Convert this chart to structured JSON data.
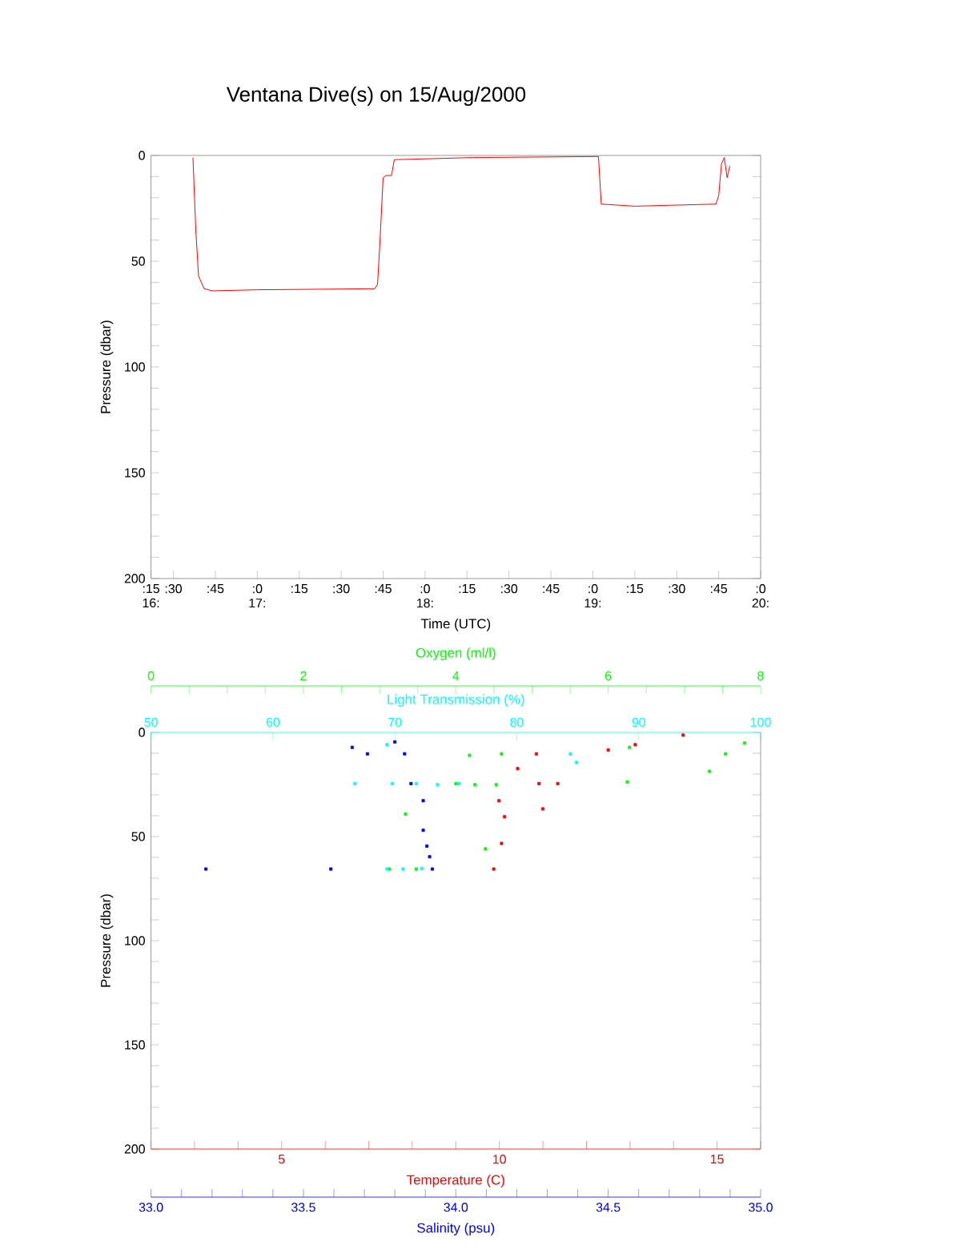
{
  "chart_data": [
    {
      "type": "line",
      "title": "Ventana Dive(s) on 15/Aug/2000",
      "xlabel": "Time (UTC)",
      "ylabel": "Pressure (dbar)",
      "xlim": [
        "2000-08-15T16:22",
        "2000-08-15T20:00"
      ],
      "ylim": [
        200,
        0
      ],
      "xticks": [
        {
          "value": "2000-08-15T16:22",
          "label": ":15 16:"
        },
        {
          "value": "2000-08-15T16:30",
          "label": ":30"
        },
        {
          "value": "2000-08-15T16:45",
          "label": ":45"
        },
        {
          "value": "2000-08-15T17:00",
          "label": ":0 17:"
        },
        {
          "value": "2000-08-15T17:15",
          "label": ":15"
        },
        {
          "value": "2000-08-15T17:30",
          "label": ":30"
        },
        {
          "value": "2000-08-15T17:45",
          "label": ":45"
        },
        {
          "value": "2000-08-15T18:00",
          "label": ":0 18:"
        },
        {
          "value": "2000-08-15T18:15",
          "label": ":15"
        },
        {
          "value": "2000-08-15T18:30",
          "label": ":30"
        },
        {
          "value": "2000-08-15T18:45",
          "label": ":45"
        },
        {
          "value": "2000-08-15T19:00",
          "label": ":0 19:"
        },
        {
          "value": "2000-08-15T19:15",
          "label": ":15"
        },
        {
          "value": "2000-08-15T19:30",
          "label": ":30"
        },
        {
          "value": "2000-08-15T19:45",
          "label": ":45"
        },
        {
          "value": "2000-08-15T20:00",
          "label": ":0 20:"
        }
      ],
      "yticks": [
        0,
        {
          "value": 10,
          "label": null
        },
        {
          "value": 20,
          "label": null
        },
        {
          "value": 30,
          "label": null
        },
        {
          "value": 40,
          "label": null
        },
        50,
        {
          "value": 60,
          "label": null
        },
        {
          "value": 70,
          "label": null
        },
        {
          "value": 80,
          "label": null
        },
        {
          "value": 90,
          "label": null
        },
        100,
        {
          "value": 110,
          "label": null
        },
        {
          "value": 120,
          "label": null
        },
        {
          "value": 130,
          "label": null
        },
        {
          "value": 140,
          "label": null
        },
        150,
        {
          "value": 160,
          "label": null
        },
        {
          "value": 170,
          "label": null
        },
        {
          "value": 180,
          "label": null
        },
        {
          "value": 190,
          "label": null
        },
        200
      ],
      "series": [
        {
          "color": "#ff0000",
          "x": [
            "2000-08-15T16:37",
            "2000-08-15T16:38",
            "2000-08-15T16:39",
            "2000-08-15T16:41",
            "2000-08-15T16:44",
            "2000-08-15T17:00",
            "2000-08-15T17:42",
            "2000-08-15T17:43",
            "2000-08-15T17:44",
            "2000-08-15T17:45",
            "2000-08-15T17:46",
            "2000-08-15T17:48",
            "2000-08-15T17:49",
            "2000-08-15T18:17",
            "2000-08-15T19:02",
            "2000-08-15T19:03",
            "2000-08-15T19:15",
            "2000-08-15T19:44",
            "2000-08-15T19:45",
            "2000-08-15T19:46",
            "2000-08-15T19:47",
            "2000-08-15T19:48",
            "2000-08-15T19:49"
          ],
          "values": [
            1,
            35,
            57,
            63,
            64,
            63.5,
            63,
            61,
            37.5,
            10.5,
            9.5,
            9.5,
            2,
            1,
            0.5,
            23,
            24,
            23,
            19,
            4,
            1,
            10.5,
            5
          ]
        }
      ]
    },
    {
      "type": "scatter",
      "xlabel": "Temperature (C)",
      "x2label": "Oxygen (ml/l)",
      "ylabel": "Pressure (dbar)",
      "marker": "square",
      "xlim": [
        2,
        16
      ],
      "xticks": [
        {
          "value": 2,
          "label": null
        },
        {
          "value": 3,
          "label": null
        },
        {
          "value": 4,
          "label": null
        },
        5,
        {
          "value": 6,
          "label": null
        },
        {
          "value": 7,
          "label": null
        },
        {
          "value": 8,
          "label": null
        },
        {
          "value": 9,
          "label": null
        },
        10,
        {
          "value": 11,
          "label": null
        },
        {
          "value": 12,
          "label": null
        },
        {
          "value": 13,
          "label": null
        },
        {
          "value": 14,
          "label": null
        },
        15,
        {
          "value": 16,
          "label": null
        }
      ],
      "x2lim": [
        0,
        8
      ],
      "x2ticks": [
        0,
        2,
        4,
        6,
        8
      ],
      "ylim": [
        200,
        0
      ],
      "yticks": [
        0,
        {
          "value": 10,
          "label": null
        },
        {
          "value": 20,
          "label": null
        },
        {
          "value": 30,
          "label": null
        },
        {
          "value": 40,
          "label": null
        },
        50,
        {
          "value": 60,
          "label": null
        },
        {
          "value": 70,
          "label": null
        },
        {
          "value": 80,
          "label": null
        },
        {
          "value": 90,
          "label": null
        },
        100,
        {
          "value": 110,
          "label": null
        },
        {
          "value": 120,
          "label": null
        },
        {
          "value": 130,
          "label": null
        },
        {
          "value": 140,
          "label": null
        },
        150,
        {
          "value": 160,
          "label": null
        },
        {
          "value": 170,
          "label": null
        },
        {
          "value": 180,
          "label": null
        },
        {
          "value": 190,
          "label": null
        },
        200
      ],
      "series": [
        {
          "color": "#ff0000",
          "x": [
            9.87,
            10.91,
            10.85,
            9.99,
            10.05,
            10.12,
            10.42,
            12.5,
            13.12,
            14.22,
            11.34,
            11.0
          ],
          "values": [
            65.6,
            24.6,
            10.3,
            32.8,
            53.3,
            40.5,
            17.4,
            8.5,
            5.9,
            1.3,
            24.6,
            36.7
          ]
        },
        {
          "axis": "x2",
          "color": "#00ff00",
          "x": [
            4.0,
            4.25,
            4.53,
            3.13,
            3.48,
            4.6,
            4.18,
            6.28,
            7.54,
            7.33,
            6.25,
            3.34,
            4.39,
            7.79
          ],
          "values": [
            24.6,
            25.1,
            25.1,
            65.6,
            65.6,
            10.3,
            11.0,
            7.2,
            10.3,
            18.7,
            23.8,
            39.2,
            55.9,
            5.1
          ]
        }
      ]
    },
    {
      "type": "scatter",
      "xlabel": "Salinity (psu)",
      "x2label": "Light Transmission (%)",
      "marker": "square",
      "xlim": [
        33.0,
        35.0
      ],
      "xticks": [
        {
          "value": 33.0,
          "label": "33.0"
        },
        {
          "value": 33.5,
          "label": "33.5"
        },
        {
          "value": 34.0,
          "label": "34.0"
        },
        {
          "value": 34.5,
          "label": "34.5"
        },
        {
          "value": 35.0,
          "label": "35.0"
        }
      ],
      "x2lim": [
        50,
        100
      ],
      "x2ticks": [
        50,
        60,
        70,
        80,
        90,
        100
      ],
      "ylim": [
        200,
        0
      ],
      "series": [
        {
          "color": "#0000ff",
          "x": [
            33.923,
            33.853,
            33.832,
            33.66,
            33.71,
            33.893,
            33.893,
            33.905,
            33.914,
            33.18,
            33.59,
            33.8
          ],
          "values": [
            65.6,
            24.6,
            10.3,
            7.2,
            10.3,
            32.8,
            47,
            54.6,
            59.7,
            65.6,
            65.6,
            4.6
          ]
        },
        {
          "axis": "x2",
          "color": "#00ffff",
          "x": [
            69.35,
            70.67,
            72.2,
            69.8,
            71.76,
            73.5,
            75.26,
            66.7,
            84.4,
            84.9,
            69.35
          ],
          "values": [
            65.6,
            65.6,
            65.4,
            24.6,
            24.6,
            25.1,
            24.6,
            24.6,
            10.3,
            14.4,
            5.9
          ]
        }
      ]
    }
  ]
}
